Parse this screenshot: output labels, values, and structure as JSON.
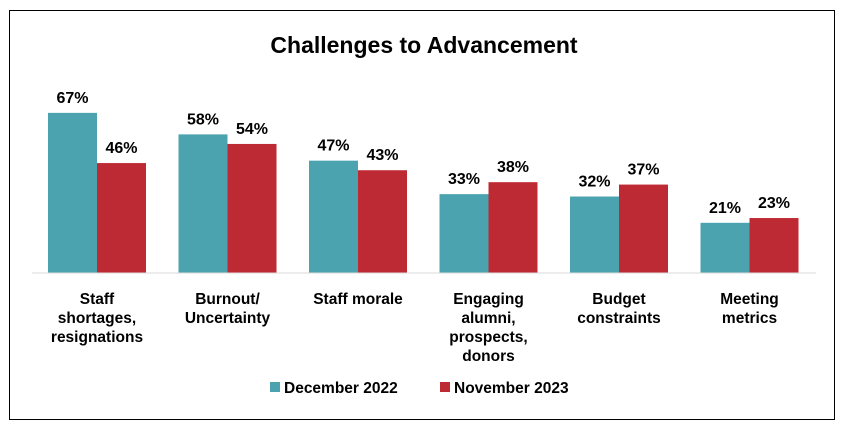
{
  "chart_data": {
    "type": "bar",
    "title": "Challenges to Advancement",
    "categories": [
      [
        "Staff",
        "shortages,",
        "resignations"
      ],
      [
        "Burnout/",
        "Uncertainty"
      ],
      [
        "Staff morale"
      ],
      [
        "Engaging",
        "alumni,",
        "prospects,",
        "donors"
      ],
      [
        "Budget",
        "constraints"
      ],
      [
        "Meeting",
        "metrics"
      ]
    ],
    "series": [
      {
        "name": "December 2022",
        "color": "#4BA3AF",
        "values": [
          67,
          58,
          47,
          33,
          32,
          21
        ]
      },
      {
        "name": "November 2023",
        "color": "#BE2A33",
        "values": [
          46,
          54,
          43,
          38,
          37,
          23
        ]
      }
    ],
    "value_suffix": "%",
    "ylim": [
      0,
      70
    ],
    "grid": false,
    "legend_position": "bottom"
  }
}
